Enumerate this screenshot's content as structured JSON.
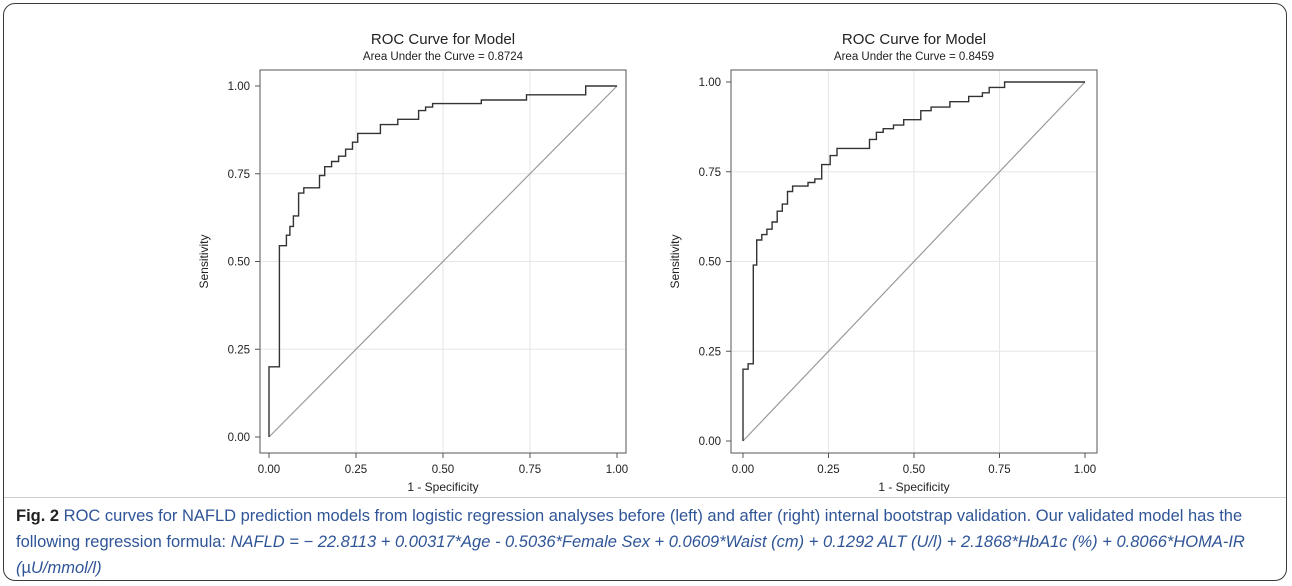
{
  "chart_data": [
    {
      "type": "line",
      "title": "ROC Curve for Model",
      "subtitle": "Area Under the Curve = 0.8724",
      "xlabel": "1 - Specificity",
      "ylabel": "Sensitivity",
      "xlim": [
        0,
        1
      ],
      "ylim": [
        0,
        1
      ],
      "xticks": [
        "0.00",
        "0.25",
        "0.50",
        "0.75",
        "1.00"
      ],
      "yticks": [
        "0.00",
        "0.25",
        "0.50",
        "0.75",
        "1.00"
      ],
      "grid": true,
      "reference_line": [
        [
          0,
          0
        ],
        [
          1,
          1
        ]
      ],
      "series": [
        {
          "x": [
            0,
            0,
            0.03,
            0.03,
            0.05,
            0.05,
            0.06,
            0.06,
            0.07,
            0.07,
            0.085,
            0.085,
            0.1,
            0.1,
            0.145,
            0.145,
            0.16,
            0.16,
            0.18,
            0.18,
            0.2,
            0.2,
            0.22,
            0.22,
            0.24,
            0.24,
            0.255,
            0.255,
            0.265,
            0.265,
            0.32,
            0.32,
            0.37,
            0.37,
            0.43,
            0.43,
            0.45,
            0.45,
            0.47,
            0.47,
            0.61,
            0.61,
            0.74,
            0.74,
            0.91,
            0.91,
            1.0
          ],
          "y": [
            0,
            0.2,
            0.2,
            0.545,
            0.545,
            0.575,
            0.575,
            0.6,
            0.6,
            0.63,
            0.63,
            0.695,
            0.695,
            0.71,
            0.71,
            0.745,
            0.745,
            0.77,
            0.77,
            0.785,
            0.785,
            0.8,
            0.8,
            0.82,
            0.82,
            0.84,
            0.84,
            0.865,
            0.865,
            0.865,
            0.865,
            0.89,
            0.89,
            0.905,
            0.905,
            0.93,
            0.93,
            0.94,
            0.94,
            0.95,
            0.95,
            0.96,
            0.96,
            0.975,
            0.975,
            1.0,
            1.0
          ]
        }
      ]
    },
    {
      "type": "line",
      "title": "ROC Curve for Model",
      "subtitle": "Area Under the Curve = 0.8459",
      "xlabel": "1 - Specificity",
      "ylabel": "Sensitivity",
      "xlim": [
        0,
        1
      ],
      "ylim": [
        0,
        1
      ],
      "xticks": [
        "0.00",
        "0.25",
        "0.50",
        "0.75",
        "1.00"
      ],
      "yticks": [
        "0.00",
        "0.25",
        "0.50",
        "0.75",
        "1.00"
      ],
      "grid": true,
      "reference_line": [
        [
          0,
          0
        ],
        [
          1,
          1
        ]
      ],
      "series": [
        {
          "x": [
            0,
            0,
            0.015,
            0.015,
            0.03,
            0.03,
            0.04,
            0.04,
            0.055,
            0.055,
            0.07,
            0.07,
            0.085,
            0.085,
            0.1,
            0.1,
            0.115,
            0.115,
            0.13,
            0.13,
            0.145,
            0.145,
            0.19,
            0.19,
            0.21,
            0.21,
            0.23,
            0.23,
            0.255,
            0.255,
            0.275,
            0.275,
            0.37,
            0.37,
            0.39,
            0.39,
            0.41,
            0.41,
            0.44,
            0.44,
            0.47,
            0.47,
            0.52,
            0.52,
            0.55,
            0.55,
            0.605,
            0.605,
            0.66,
            0.66,
            0.7,
            0.7,
            0.72,
            0.72,
            0.765,
            0.765,
            0.8,
            0.8,
            1.0
          ],
          "y": [
            0,
            0.2,
            0.2,
            0.215,
            0.215,
            0.49,
            0.49,
            0.56,
            0.56,
            0.575,
            0.575,
            0.59,
            0.59,
            0.61,
            0.61,
            0.64,
            0.64,
            0.66,
            0.66,
            0.695,
            0.695,
            0.71,
            0.71,
            0.72,
            0.72,
            0.73,
            0.73,
            0.77,
            0.77,
            0.795,
            0.795,
            0.815,
            0.815,
            0.84,
            0.84,
            0.86,
            0.86,
            0.87,
            0.87,
            0.88,
            0.88,
            0.895,
            0.895,
            0.92,
            0.92,
            0.93,
            0.93,
            0.945,
            0.945,
            0.96,
            0.96,
            0.97,
            0.97,
            0.985,
            0.985,
            1.0,
            1.0,
            1.0,
            1.0
          ]
        }
      ]
    }
  ],
  "caption": {
    "fig_label": "Fig. 2",
    "text": " ROC curves for NAFLD prediction models from logistic regression analyses before (left) and after (right) internal bootstrap validation. Our validated model has the following regression formula: ",
    "formula_a": "NAFLD = − 22.8113 + 0.00317*Age - 0.5036*Female Sex + 0.0609*Waist (cm) + 0.1292 ALT (U/l) + 2.1868*HbA1c (%) + 0.8066*HOMA-IR (",
    "formula_unit": "µ",
    "formula_b": "U/mmol/l)"
  },
  "colors": {
    "roc_line": "#333333",
    "reference_line": "#9a9a9a",
    "grid": "#e6e6e6",
    "axis": "#555555",
    "caption_text": "#2f5597"
  }
}
